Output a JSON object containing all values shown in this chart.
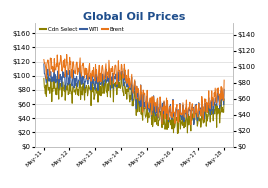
{
  "title": "Global Oil Prices",
  "title_fontsize": 8,
  "title_color": "#1F4E8C",
  "legend_entries": [
    "WTI",
    "Brent",
    "Cdn Select"
  ],
  "line_colors": [
    "#3A5FA0",
    "#E8751A",
    "#8B8000"
  ],
  "left_yticks": [
    0,
    20,
    40,
    60,
    80,
    100,
    120,
    140,
    160
  ],
  "right_yticks": [
    0,
    20,
    40,
    60,
    80,
    100,
    120,
    140
  ],
  "left_ylim": [
    0,
    175
  ],
  "right_ylim": [
    0,
    155
  ],
  "xtick_labels": [
    "May-11",
    "May-12",
    "May-13",
    "May-14",
    "May-15",
    "May-16",
    "May-17",
    "May-18"
  ],
  "background_color": "#FFFFFF",
  "grid_color": "#D0D0D0"
}
